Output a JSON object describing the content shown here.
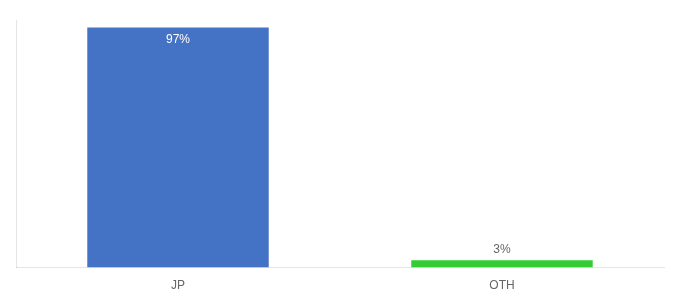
{
  "chart_data": {
    "type": "bar",
    "categories": [
      "JP",
      "OTH"
    ],
    "values": [
      97,
      3
    ],
    "value_labels": [
      "97%",
      "3%"
    ],
    "colors": [
      "#4472c4",
      "#33cc33"
    ],
    "ylim": [
      0,
      100
    ],
    "data_labels": true,
    "tick_labels": "x",
    "grid": false
  }
}
